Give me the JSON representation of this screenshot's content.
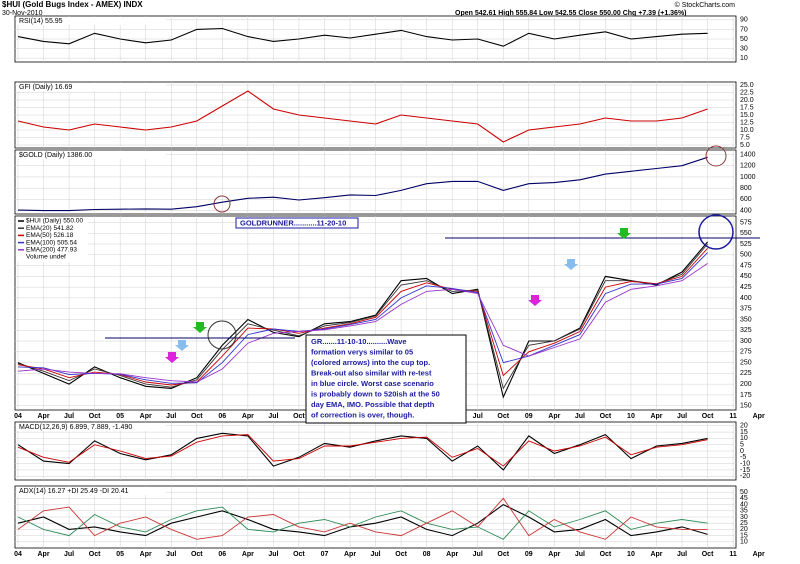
{
  "header": {
    "title": "$HUI (Gold Bugs Index - AMEX) INDX",
    "date": "30-Nov-2010",
    "quote": "Open 542.61  High 555.84  Low 542.55  Close 550.00  Chg +7.39 (+1.36%)",
    "source": "© StockCharts.com"
  },
  "annotations": {
    "goldrunner": "GOLDRUNNER...........11-20-10",
    "note": [
      "GR.......11-10-10..........Wave",
      "formation verys similar to 05",
      "(colored arrows) into the cup top.",
      "Break-out also similar with re-test",
      "in blue circle.  Worst case scenario",
      "is probably down to 520ish at the 50",
      "day EMA, IMO.  Possible that depth",
      "of correction is over, though."
    ]
  },
  "chart_data": [
    {
      "type": "line",
      "title": "RSI(14) 55.95",
      "ylim": [
        2,
        98
      ],
      "yticks": [
        90,
        70,
        50,
        30,
        10
      ],
      "grid": true,
      "series": [
        {
          "color": "#000000",
          "values": [
            55,
            45,
            40,
            62,
            50,
            42,
            48,
            70,
            72,
            55,
            45,
            50,
            58,
            52,
            60,
            68,
            55,
            48,
            50,
            35,
            62,
            50,
            58,
            65,
            50,
            55,
            60,
            62,
            null,
            null
          ]
        }
      ]
    },
    {
      "type": "line",
      "title": "GFI (Daily) 16.69",
      "ylim": [
        4,
        26
      ],
      "grid": true,
      "yticks": [
        {
          "value": 25,
          "label": "25.0"
        },
        {
          "value": 22.5,
          "label": "22.5"
        },
        {
          "value": 20,
          "label": "20.0"
        },
        {
          "value": 17.5,
          "label": "17.5"
        },
        {
          "value": 15,
          "label": "15.0"
        },
        {
          "value": 12.5,
          "label": "12.5"
        },
        {
          "value": 10,
          "label": "10.0"
        },
        7.5,
        {
          "value": 5,
          "label": "5.0"
        }
      ],
      "series": [
        {
          "name": "GFI (Daily) 16.69",
          "color": "#cc0000",
          "values": [
            13,
            11,
            10,
            12,
            11,
            10,
            11,
            13,
            18,
            23,
            17,
            15,
            14,
            13,
            12,
            15,
            14,
            13,
            12,
            6,
            10,
            11,
            12,
            14,
            13,
            13,
            14,
            17,
            null,
            null
          ]
        }
      ]
    },
    {
      "type": "line",
      "title": "$GOLD (Daily) 1386.00",
      "ylim": [
        340,
        1480
      ],
      "yticks": [
        1400,
        1200,
        1000,
        800,
        600,
        400
      ],
      "grid": true,
      "series": [
        {
          "color": "#000066",
          "values": [
            410,
            400,
            400,
            420,
            425,
            430,
            425,
            470,
            550,
            620,
            640,
            590,
            630,
            680,
            670,
            760,
            880,
            920,
            920,
            760,
            880,
            900,
            950,
            1050,
            1100,
            1150,
            1200,
            1350,
            null,
            null
          ]
        }
      ]
    },
    {
      "type": "line",
      "ylim": [
        140,
        590
      ],
      "grid": true,
      "volume_label": "Volume undef",
      "yticks": [
        575,
        550,
        525,
        500,
        475,
        450,
        425,
        400,
        375,
        350,
        325,
        300,
        275,
        250,
        225,
        200,
        175,
        150
      ],
      "categories": [
        "04",
        "Apr",
        "Jul",
        "Oct",
        "05",
        "Apr",
        "Jul",
        "Oct",
        "06",
        "Apr",
        "Jul",
        "Oct",
        "07",
        "Apr",
        "Jul",
        "Oct",
        "08",
        "Apr",
        "Jul",
        "Oct",
        "09",
        "Apr",
        "Jul",
        "Oct",
        "10",
        "Apr",
        "Jul",
        "Oct",
        "11",
        "Apr"
      ],
      "series": [
        {
          "name": "$HUI (Daily) 550.00",
          "color": "#000000",
          "values": [
            250,
            225,
            200,
            240,
            215,
            195,
            190,
            215,
            290,
            350,
            320,
            310,
            340,
            345,
            360,
            440,
            445,
            410,
            420,
            170,
            300,
            300,
            330,
            450,
            440,
            430,
            460,
            530,
            null,
            null
          ]
        },
        {
          "name": "EMA(20) 541.82",
          "color": "#333333",
          "values": [
            248,
            230,
            208,
            235,
            220,
            200,
            193,
            210,
            280,
            340,
            325,
            312,
            335,
            343,
            358,
            430,
            440,
            415,
            418,
            190,
            290,
            300,
            328,
            440,
            440,
            432,
            455,
            525,
            null,
            null
          ]
        },
        {
          "name": "EMA(50) 526.18",
          "color": "#cc0000",
          "values": [
            245,
            235,
            215,
            228,
            222,
            205,
            198,
            205,
            265,
            330,
            328,
            318,
            330,
            340,
            355,
            415,
            435,
            420,
            415,
            220,
            275,
            295,
            322,
            425,
            438,
            433,
            450,
            515,
            null,
            null
          ]
        },
        {
          "name": "EMA(100) 505.54",
          "color": "#3333cc",
          "values": [
            240,
            238,
            222,
            225,
            223,
            210,
            202,
            203,
            250,
            315,
            328,
            322,
            328,
            338,
            350,
            400,
            428,
            422,
            412,
            250,
            265,
            290,
            315,
            410,
            432,
            432,
            445,
            505,
            null,
            null
          ]
        },
        {
          "name": "EMA(200) 477.93",
          "color": "#9933cc",
          "values": [
            230,
            235,
            228,
            225,
            224,
            215,
            208,
            205,
            235,
            295,
            318,
            322,
            326,
            335,
            345,
            385,
            415,
            420,
            410,
            290,
            265,
            285,
            305,
            390,
            420,
            428,
            440,
            480,
            null,
            null
          ]
        }
      ]
    },
    {
      "type": "line",
      "title": "MACD(12,26,9) 6.899, 7.889, -1.490",
      "ylim": [
        -23,
        23
      ],
      "yticks": [
        20,
        15,
        10,
        5,
        0,
        -5,
        -10,
        -15,
        -20
      ],
      "grid": true,
      "series": [
        {
          "color": "#000000",
          "values": [
            5,
            -8,
            -10,
            8,
            -2,
            -7,
            -3,
            10,
            14,
            12,
            -12,
            -5,
            6,
            3,
            8,
            12,
            10,
            -8,
            4,
            -15,
            12,
            -2,
            5,
            13,
            -6,
            4,
            6,
            10,
            null,
            null
          ]
        },
        {
          "color": "#cc0000",
          "values": [
            3,
            -5,
            -9,
            5,
            0,
            -6,
            -4,
            7,
            12,
            13,
            -8,
            -6,
            4,
            4,
            7,
            10,
            11,
            -5,
            2,
            -12,
            8,
            0,
            4,
            11,
            -3,
            3,
            5,
            9,
            null,
            null
          ]
        }
      ]
    },
    {
      "type": "line",
      "title": "ADX(14) 16.27 +DI 25.49 -DI 20.41",
      "ylim": [
        5,
        55
      ],
      "yticks": [
        50,
        45,
        40,
        35,
        30,
        25,
        20,
        15,
        10
      ],
      "grid": true,
      "categories": [
        "04",
        "Apr",
        "Jul",
        "Oct",
        "05",
        "Apr",
        "Jul",
        "Oct",
        "06",
        "Apr",
        "Jul",
        "Oct",
        "07",
        "Apr",
        "Jul",
        "Oct",
        "08",
        "Apr",
        "Jul",
        "Oct",
        "09",
        "Apr",
        "Jul",
        "Oct",
        "10",
        "Apr",
        "Jul",
        "Oct",
        "11",
        "Apr"
      ],
      "series": [
        {
          "color": "#000000",
          "values": [
            25,
            30,
            20,
            22,
            18,
            15,
            25,
            30,
            35,
            28,
            20,
            18,
            15,
            22,
            25,
            30,
            20,
            15,
            25,
            40,
            30,
            18,
            20,
            28,
            15,
            18,
            22,
            16,
            null,
            null
          ]
        },
        {
          "color": "#2e8b57",
          "values": [
            30,
            20,
            15,
            32,
            22,
            18,
            28,
            35,
            38,
            20,
            18,
            25,
            28,
            22,
            30,
            35,
            25,
            20,
            22,
            12,
            35,
            22,
            28,
            35,
            20,
            25,
            28,
            25,
            null,
            null
          ]
        },
        {
          "color": "#cc3333",
          "values": [
            20,
            35,
            38,
            15,
            25,
            30,
            20,
            12,
            15,
            30,
            32,
            22,
            18,
            25,
            18,
            15,
            25,
            35,
            22,
            45,
            15,
            28,
            18,
            12,
            30,
            22,
            20,
            20,
            null,
            null
          ]
        }
      ]
    }
  ]
}
